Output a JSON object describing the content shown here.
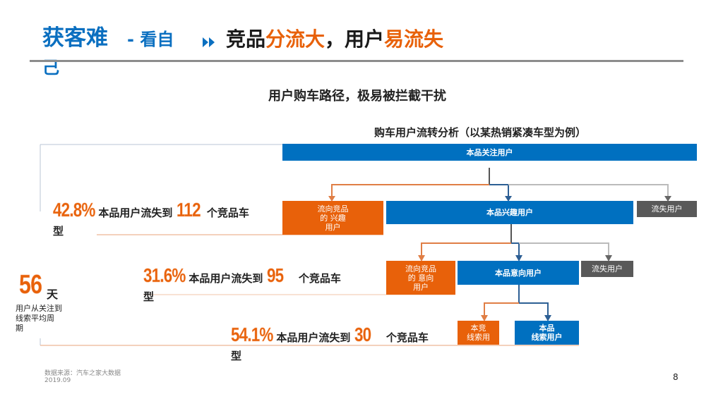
{
  "header": {
    "title_main": "获客难",
    "title_sub": "- 看自",
    "title_wrap": "己",
    "arrow_icon": "double-chevron-right-icon",
    "headline": [
      {
        "text": "竞品",
        "color": "#1a1a1a"
      },
      {
        "text": "分流大",
        "color": "#e8610a"
      },
      {
        "text": "，用户",
        "color": "#1a1a1a"
      },
      {
        "text": "易流失",
        "color": "#e8610a"
      }
    ]
  },
  "subtitle": "用户购车路径，极易被拦截干扰",
  "flow": {
    "title": "购车用户流转分析（以某热销紧凑车型为例）",
    "top": "本品关注用户",
    "row1": {
      "competitor": "流向竞品\n的 兴趣\n用户",
      "main": "本品兴趣用户",
      "lost": "流失用户"
    },
    "row2": {
      "competitor": "流向竞品\n的 意向\n用户",
      "main": "本品意向用户",
      "lost": "流失用户"
    },
    "row3": {
      "competitor": "本竞\n线索用",
      "main": "本品\n线索用户"
    }
  },
  "stats": [
    {
      "percent": "42.8%",
      "text": "本品用户流失到",
      "count": "112",
      "suffix": "个竞品车",
      "wrap": "型"
    },
    {
      "percent": "31.6%",
      "text": "本品用户流失到",
      "count": "95",
      "suffix": "个竞品车",
      "wrap": "型"
    },
    {
      "percent": "54.1%",
      "text": "本品用户流失到",
      "count": "30",
      "suffix": "个竞品车",
      "wrap": "型"
    }
  ],
  "cycle": {
    "value": "56",
    "unit": "天",
    "label": "用户从关注到\n线索平均周\n期"
  },
  "footer": {
    "source": "数据来源：汽车之家大数据",
    "date": "2019.09",
    "page": "8"
  },
  "colors": {
    "orange": "#e8610a",
    "blue": "#0070c0",
    "gray": "#595959"
  }
}
